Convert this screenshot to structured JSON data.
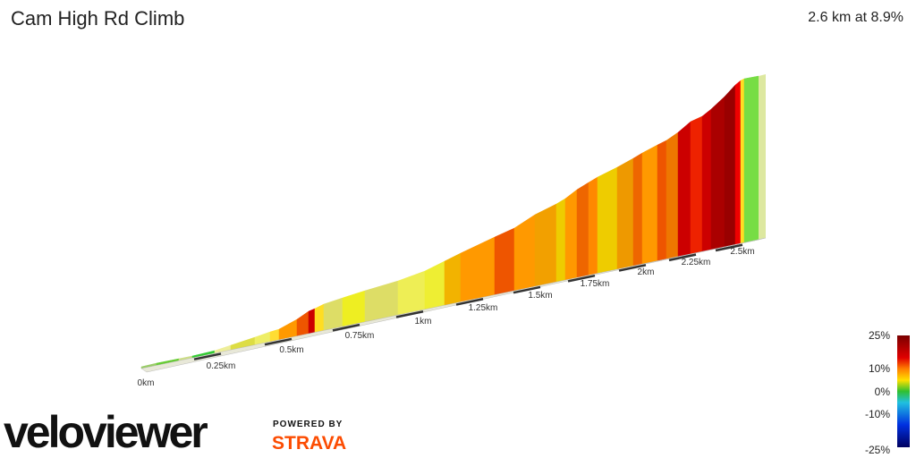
{
  "header": {
    "title": "Cam High Rd Climb",
    "summary": "2.6 km at 8.9%"
  },
  "distance_labels": [
    "0km",
    "0.25km",
    "0.5km",
    "0.75km",
    "1km",
    "1.25km",
    "1.5km",
    "1.75km",
    "2km",
    "2.25km",
    "2.5km"
  ],
  "gradient_legend": [
    "25%",
    "10%",
    "0%",
    "-10%",
    "-25%"
  ],
  "branding": {
    "logo": "veloviewer",
    "powered": "POWERED BY",
    "partner": "STRAVA"
  }
}
